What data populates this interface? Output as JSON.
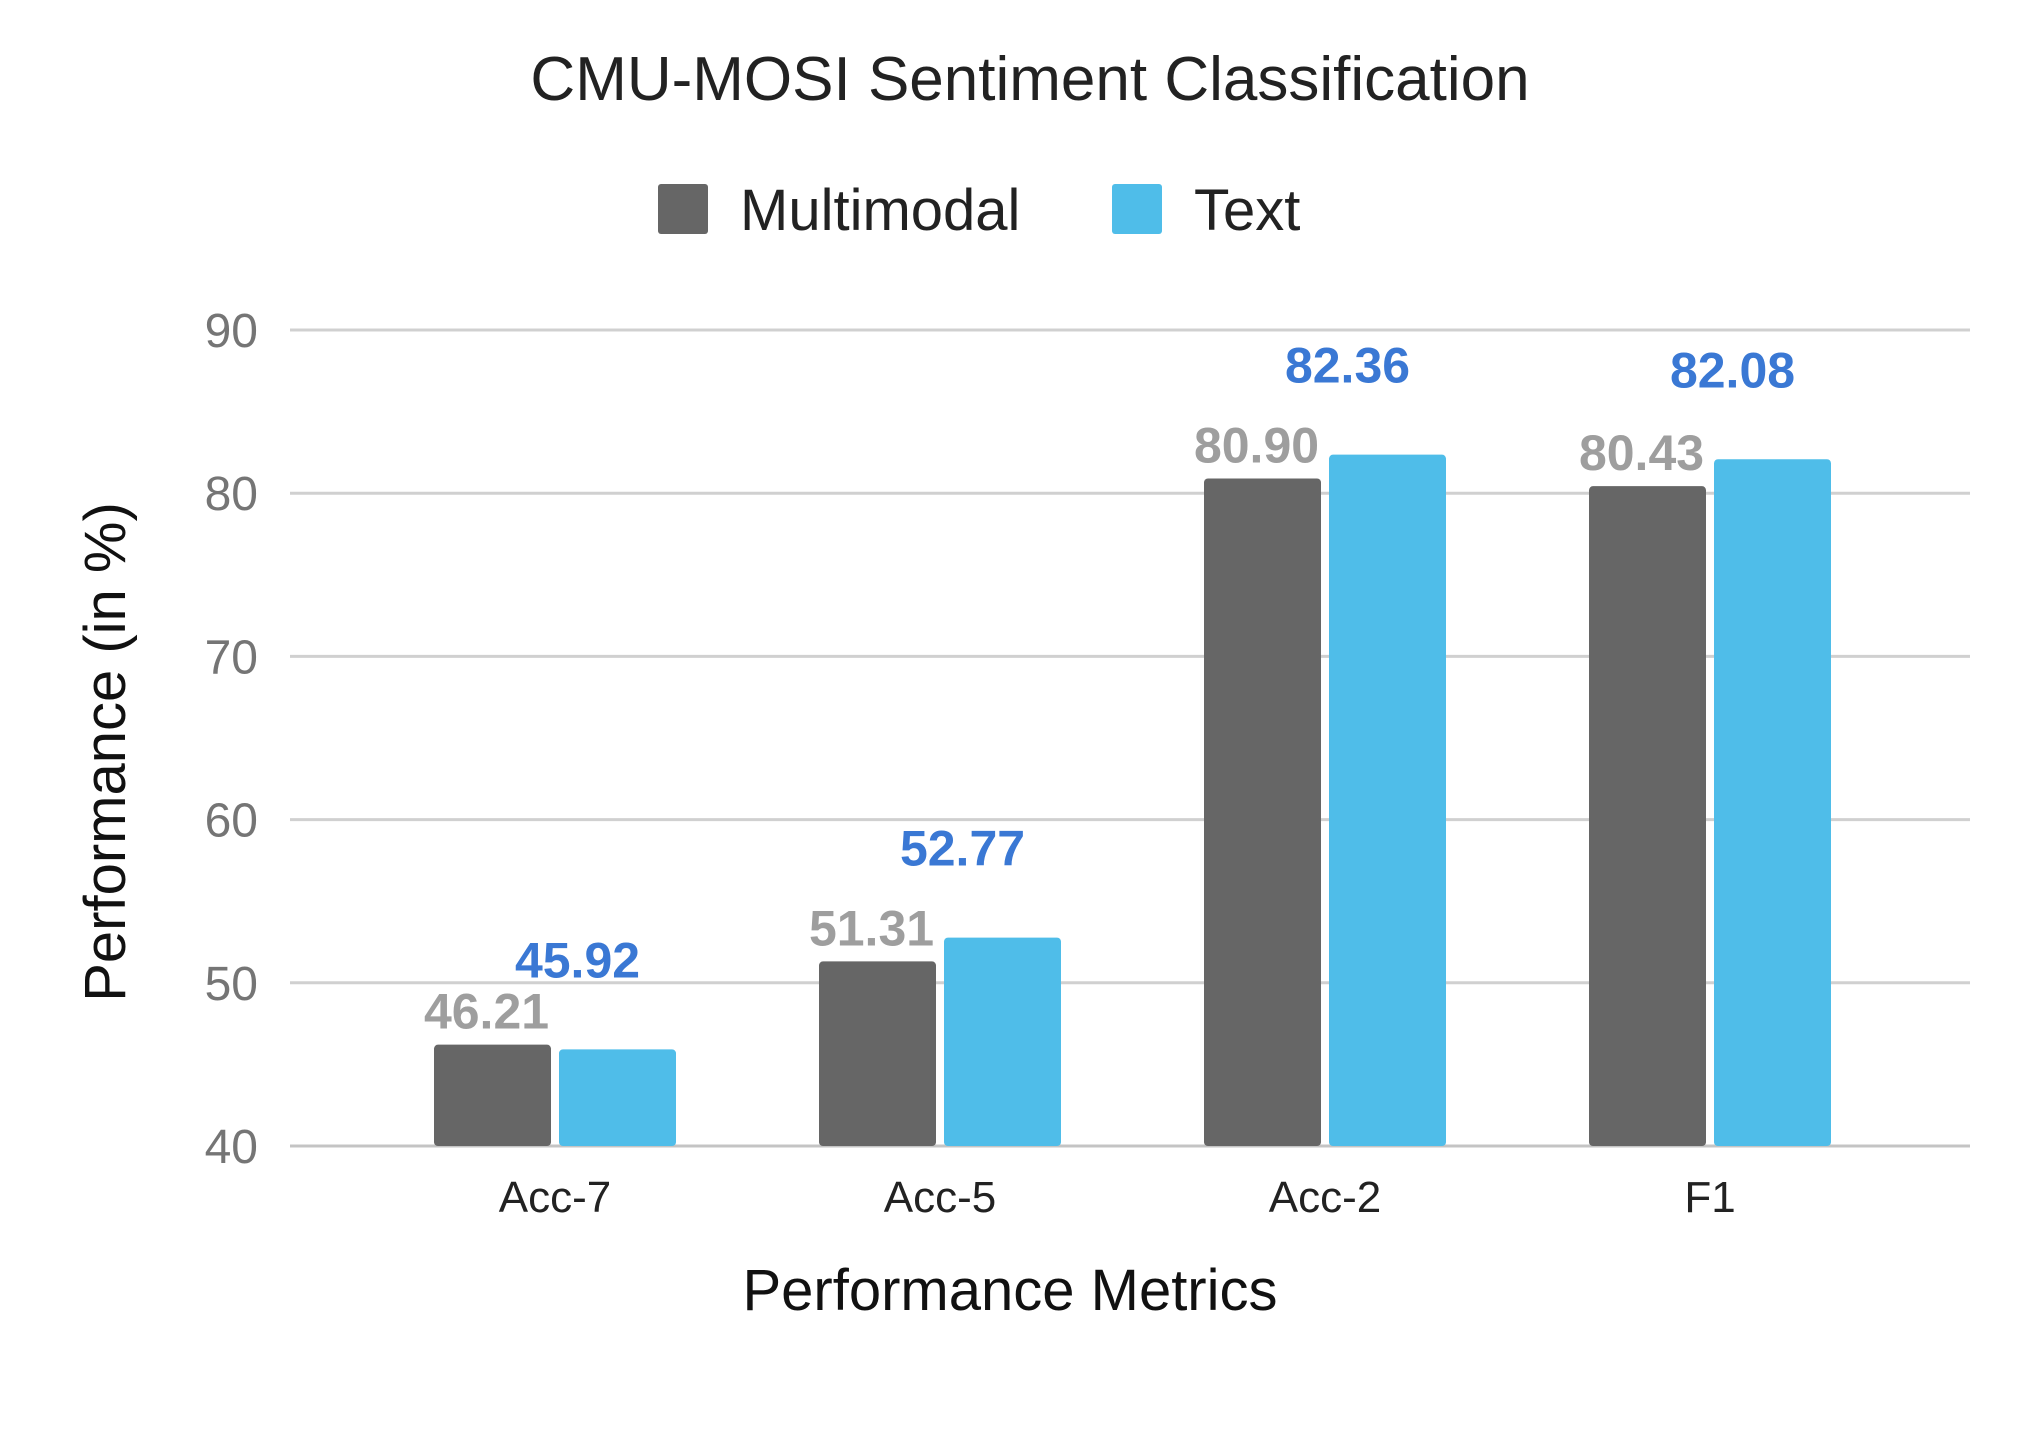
{
  "chart_data": {
    "type": "bar",
    "title": "CMU-MOSI Sentiment Classification",
    "xlabel": "Performance Metrics",
    "ylabel": "Performance (in %)",
    "categories": [
      "Acc-7",
      "Acc-5",
      "Acc-2",
      "F1"
    ],
    "series": [
      {
        "name": "Multimodal",
        "color": "#666666",
        "label_color": "#9e9e9e",
        "values": [
          46.21,
          51.31,
          80.9,
          80.43
        ],
        "labels": [
          "46.21",
          "51.31",
          "80.90",
          "80.43"
        ]
      },
      {
        "name": "Text",
        "color": "#4fbde9",
        "label_color": "#3a78d4",
        "values": [
          45.92,
          52.77,
          82.36,
          82.08
        ],
        "labels": [
          "45.92",
          "52.77",
          "82.36",
          "82.08"
        ]
      }
    ],
    "ylim": [
      40,
      90
    ],
    "yticks": [
      40,
      50,
      60,
      70,
      80,
      90
    ],
    "ytick_labels": [
      "40",
      "50",
      "60",
      "70",
      "80",
      "90"
    ],
    "grid": true,
    "legend_position": "top-center"
  }
}
